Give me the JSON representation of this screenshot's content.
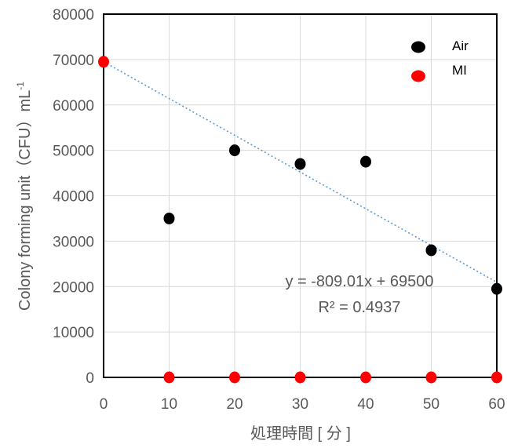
{
  "chart_data": {
    "type": "scatter",
    "xlabel": "処理時間 [ 分 ]",
    "ylabel": "Colony forming unit（CFU）mL",
    "ylabel_sup": "-1",
    "xlim": [
      0,
      60
    ],
    "ylim": [
      0,
      80000
    ],
    "x_ticks": [
      "0",
      "10",
      "20",
      "30",
      "40",
      "50",
      "60"
    ],
    "y_ticks": [
      "0",
      "10000",
      "20000",
      "30000",
      "40000",
      "50000",
      "60000",
      "70000",
      "80000"
    ],
    "grid": true,
    "legend_position": "top-right",
    "series": [
      {
        "name": "Air",
        "color": "#000000",
        "points": [
          [
            10,
            35000
          ],
          [
            20,
            50000
          ],
          [
            30,
            47000
          ],
          [
            40,
            47500
          ],
          [
            50,
            28000
          ],
          [
            60,
            19500
          ]
        ]
      },
      {
        "name": "MI",
        "color": "#ff0000",
        "points": [
          [
            0,
            69500
          ],
          [
            10,
            0
          ],
          [
            20,
            0
          ],
          [
            30,
            0
          ],
          [
            40,
            0
          ],
          [
            50,
            0
          ],
          [
            60,
            0
          ]
        ]
      }
    ],
    "trendline": {
      "slope": -809.01,
      "intercept": 69500,
      "color": "#5b9bd5",
      "equation": "y = -809.01x + 69500",
      "r_squared": "R² = 0.4937"
    }
  }
}
